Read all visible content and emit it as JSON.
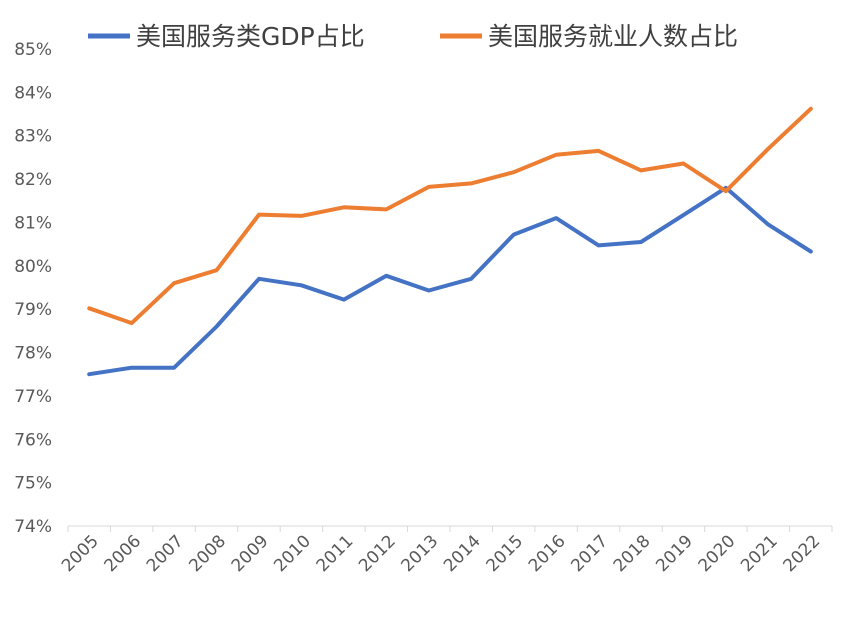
{
  "chart_data": {
    "type": "line",
    "title": "",
    "xlabel": "",
    "ylabel": "",
    "x": [
      "2005",
      "2006",
      "2007",
      "2008",
      "2009",
      "2010",
      "2011",
      "2012",
      "2013",
      "2014",
      "2015",
      "2016",
      "2017",
      "2018",
      "2019",
      "2020",
      "2021",
      "2022"
    ],
    "yticks": [
      "74%",
      "75%",
      "76%",
      "77%",
      "78%",
      "79%",
      "80%",
      "81%",
      "82%",
      "83%",
      "84%",
      "85%"
    ],
    "ylim": [
      74,
      85
    ],
    "grid": false,
    "legend_position": "top",
    "series": [
      {
        "name": "美国服务类GDP占比",
        "color": "#4472C4",
        "values": [
          77.5,
          77.65,
          77.65,
          78.6,
          79.7,
          79.55,
          79.22,
          79.77,
          79.43,
          79.7,
          80.72,
          81.1,
          80.47,
          80.55,
          81.17,
          81.8,
          80.95,
          80.33
        ]
      },
      {
        "name": "美国服务就业人数占比",
        "color": "#ED7D31",
        "values": [
          79.02,
          78.68,
          79.6,
          79.9,
          81.18,
          81.15,
          81.35,
          81.3,
          81.82,
          81.9,
          82.16,
          82.56,
          82.65,
          82.2,
          82.36,
          81.72,
          82.7,
          83.62
        ]
      }
    ]
  }
}
